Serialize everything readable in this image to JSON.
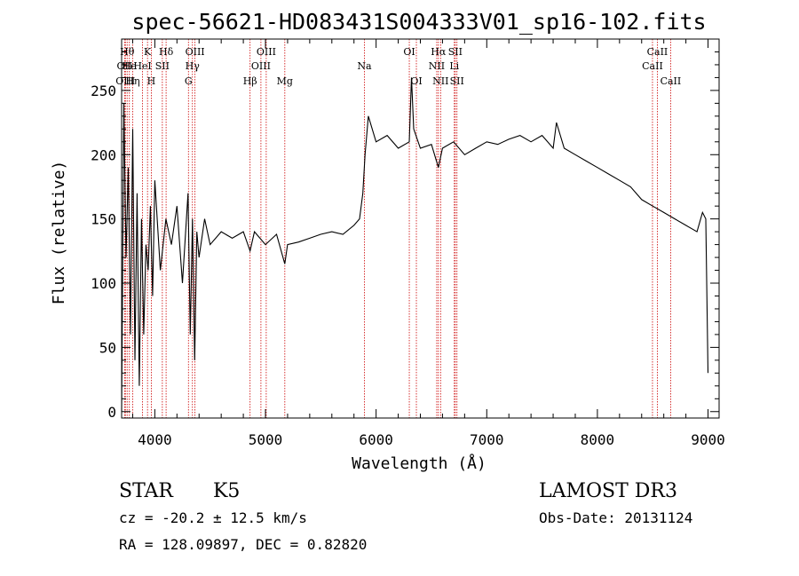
{
  "chart_data": {
    "type": "line",
    "title": "spec-56621-HD083431S004333V01_sp16-102.fits",
    "xlabel": "Wavelength (Å)",
    "ylabel": "Flux (relative)",
    "xlim": [
      3700,
      9100
    ],
    "ylim": [
      -5,
      290
    ],
    "x_ticks": [
      4000,
      5000,
      6000,
      7000,
      8000,
      9000
    ],
    "y_ticks": [
      0,
      50,
      100,
      150,
      200,
      250
    ],
    "grid": false,
    "colors": {
      "spectrum": "#000000",
      "line_markers": "#cc0000"
    },
    "series": [
      {
        "values_x": [
          3700,
          3720,
          3740,
          3760,
          3780,
          3800,
          3820,
          3840,
          3860,
          3880,
          3900,
          3920,
          3940,
          3960,
          3980,
          4000,
          4050,
          4100,
          4150,
          4200,
          4250,
          4300,
          4320,
          4340,
          4360,
          4380,
          4400,
          4450,
          4500,
          4600,
          4700,
          4800,
          4861,
          4900,
          5000,
          5100,
          5175,
          5200,
          5300,
          5400,
          5500,
          5600,
          5700,
          5800,
          5850,
          5880,
          5900,
          5930,
          6000,
          6100,
          6200,
          6300,
          6320,
          6340,
          6400,
          6500,
          6563,
          6600,
          6700,
          6800,
          6900,
          7000,
          7100,
          7200,
          7300,
          7400,
          7500,
          7600,
          7630,
          7700,
          7800,
          7900,
          8000,
          8100,
          8200,
          8300,
          8400,
          8500,
          8600,
          8700,
          8800,
          8900,
          8950,
          8980,
          9000
        ],
        "values_y": [
          0,
          240,
          120,
          190,
          60,
          220,
          40,
          170,
          20,
          150,
          60,
          130,
          110,
          160,
          90,
          180,
          110,
          150,
          130,
          160,
          100,
          170,
          60,
          150,
          40,
          140,
          120,
          150,
          130,
          140,
          135,
          140,
          125,
          140,
          130,
          138,
          115,
          130,
          132,
          135,
          138,
          140,
          138,
          145,
          150,
          170,
          200,
          230,
          210,
          215,
          205,
          210,
          260,
          220,
          205,
          208,
          190,
          205,
          210,
          200,
          205,
          210,
          208,
          212,
          215,
          210,
          215,
          205,
          225,
          205,
          200,
          195,
          190,
          185,
          180,
          175,
          165,
          160,
          155,
          150,
          145,
          140,
          155,
          150,
          30
        ]
      }
    ],
    "line_markers": [
      {
        "wl": 3727,
        "label": "OII",
        "row": 2
      },
      {
        "wl": 3734,
        "label": "OIII",
        "row": 3
      },
      {
        "wl": 3750,
        "label": "Hθ",
        "row": 1
      },
      {
        "wl": 3770,
        "label": "He",
        "row": 2
      },
      {
        "wl": 3800,
        "label": "Hη",
        "row": 3
      },
      {
        "wl": 3889,
        "label": "HeI",
        "row": 2
      },
      {
        "wl": 3934,
        "label": "K",
        "row": 1
      },
      {
        "wl": 3968,
        "label": "H",
        "row": 3
      },
      {
        "wl": 4068,
        "label": "SII",
        "row": 2
      },
      {
        "wl": 4102,
        "label": "Hδ",
        "row": 1
      },
      {
        "wl": 4304,
        "label": "G",
        "row": 3
      },
      {
        "wl": 4340,
        "label": "Hγ",
        "row": 2
      },
      {
        "wl": 4363,
        "label": "OIII",
        "row": 1
      },
      {
        "wl": 4861,
        "label": "Hβ",
        "row": 3
      },
      {
        "wl": 4959,
        "label": "OIII",
        "row": 2
      },
      {
        "wl": 5007,
        "label": "OIII",
        "row": 1
      },
      {
        "wl": 5175,
        "label": "Mg",
        "row": 3
      },
      {
        "wl": 5894,
        "label": "Na",
        "row": 2
      },
      {
        "wl": 6300,
        "label": "OI",
        "row": 1
      },
      {
        "wl": 6364,
        "label": "OI",
        "row": 3
      },
      {
        "wl": 6548,
        "label": "NII",
        "row": 2
      },
      {
        "wl": 6563,
        "label": "Hα",
        "row": 1
      },
      {
        "wl": 6583,
        "label": "NII",
        "row": 3
      },
      {
        "wl": 6707,
        "label": "Li",
        "row": 2
      },
      {
        "wl": 6716,
        "label": "SII",
        "row": 1
      },
      {
        "wl": 6731,
        "label": "SII",
        "row": 3
      },
      {
        "wl": 8498,
        "label": "CaII",
        "row": 2
      },
      {
        "wl": 8542,
        "label": "CaII",
        "row": 1
      },
      {
        "wl": 8662,
        "label": "CaII",
        "row": 3
      }
    ]
  },
  "info": {
    "class": "STAR",
    "subclass": "K5",
    "survey": "LAMOST DR3",
    "cz": "cz = -20.2 ± 12.5 km/s",
    "obs_date": "Obs-Date: 20131124",
    "radec": "RA = 128.09897, DEC =   0.82820"
  }
}
